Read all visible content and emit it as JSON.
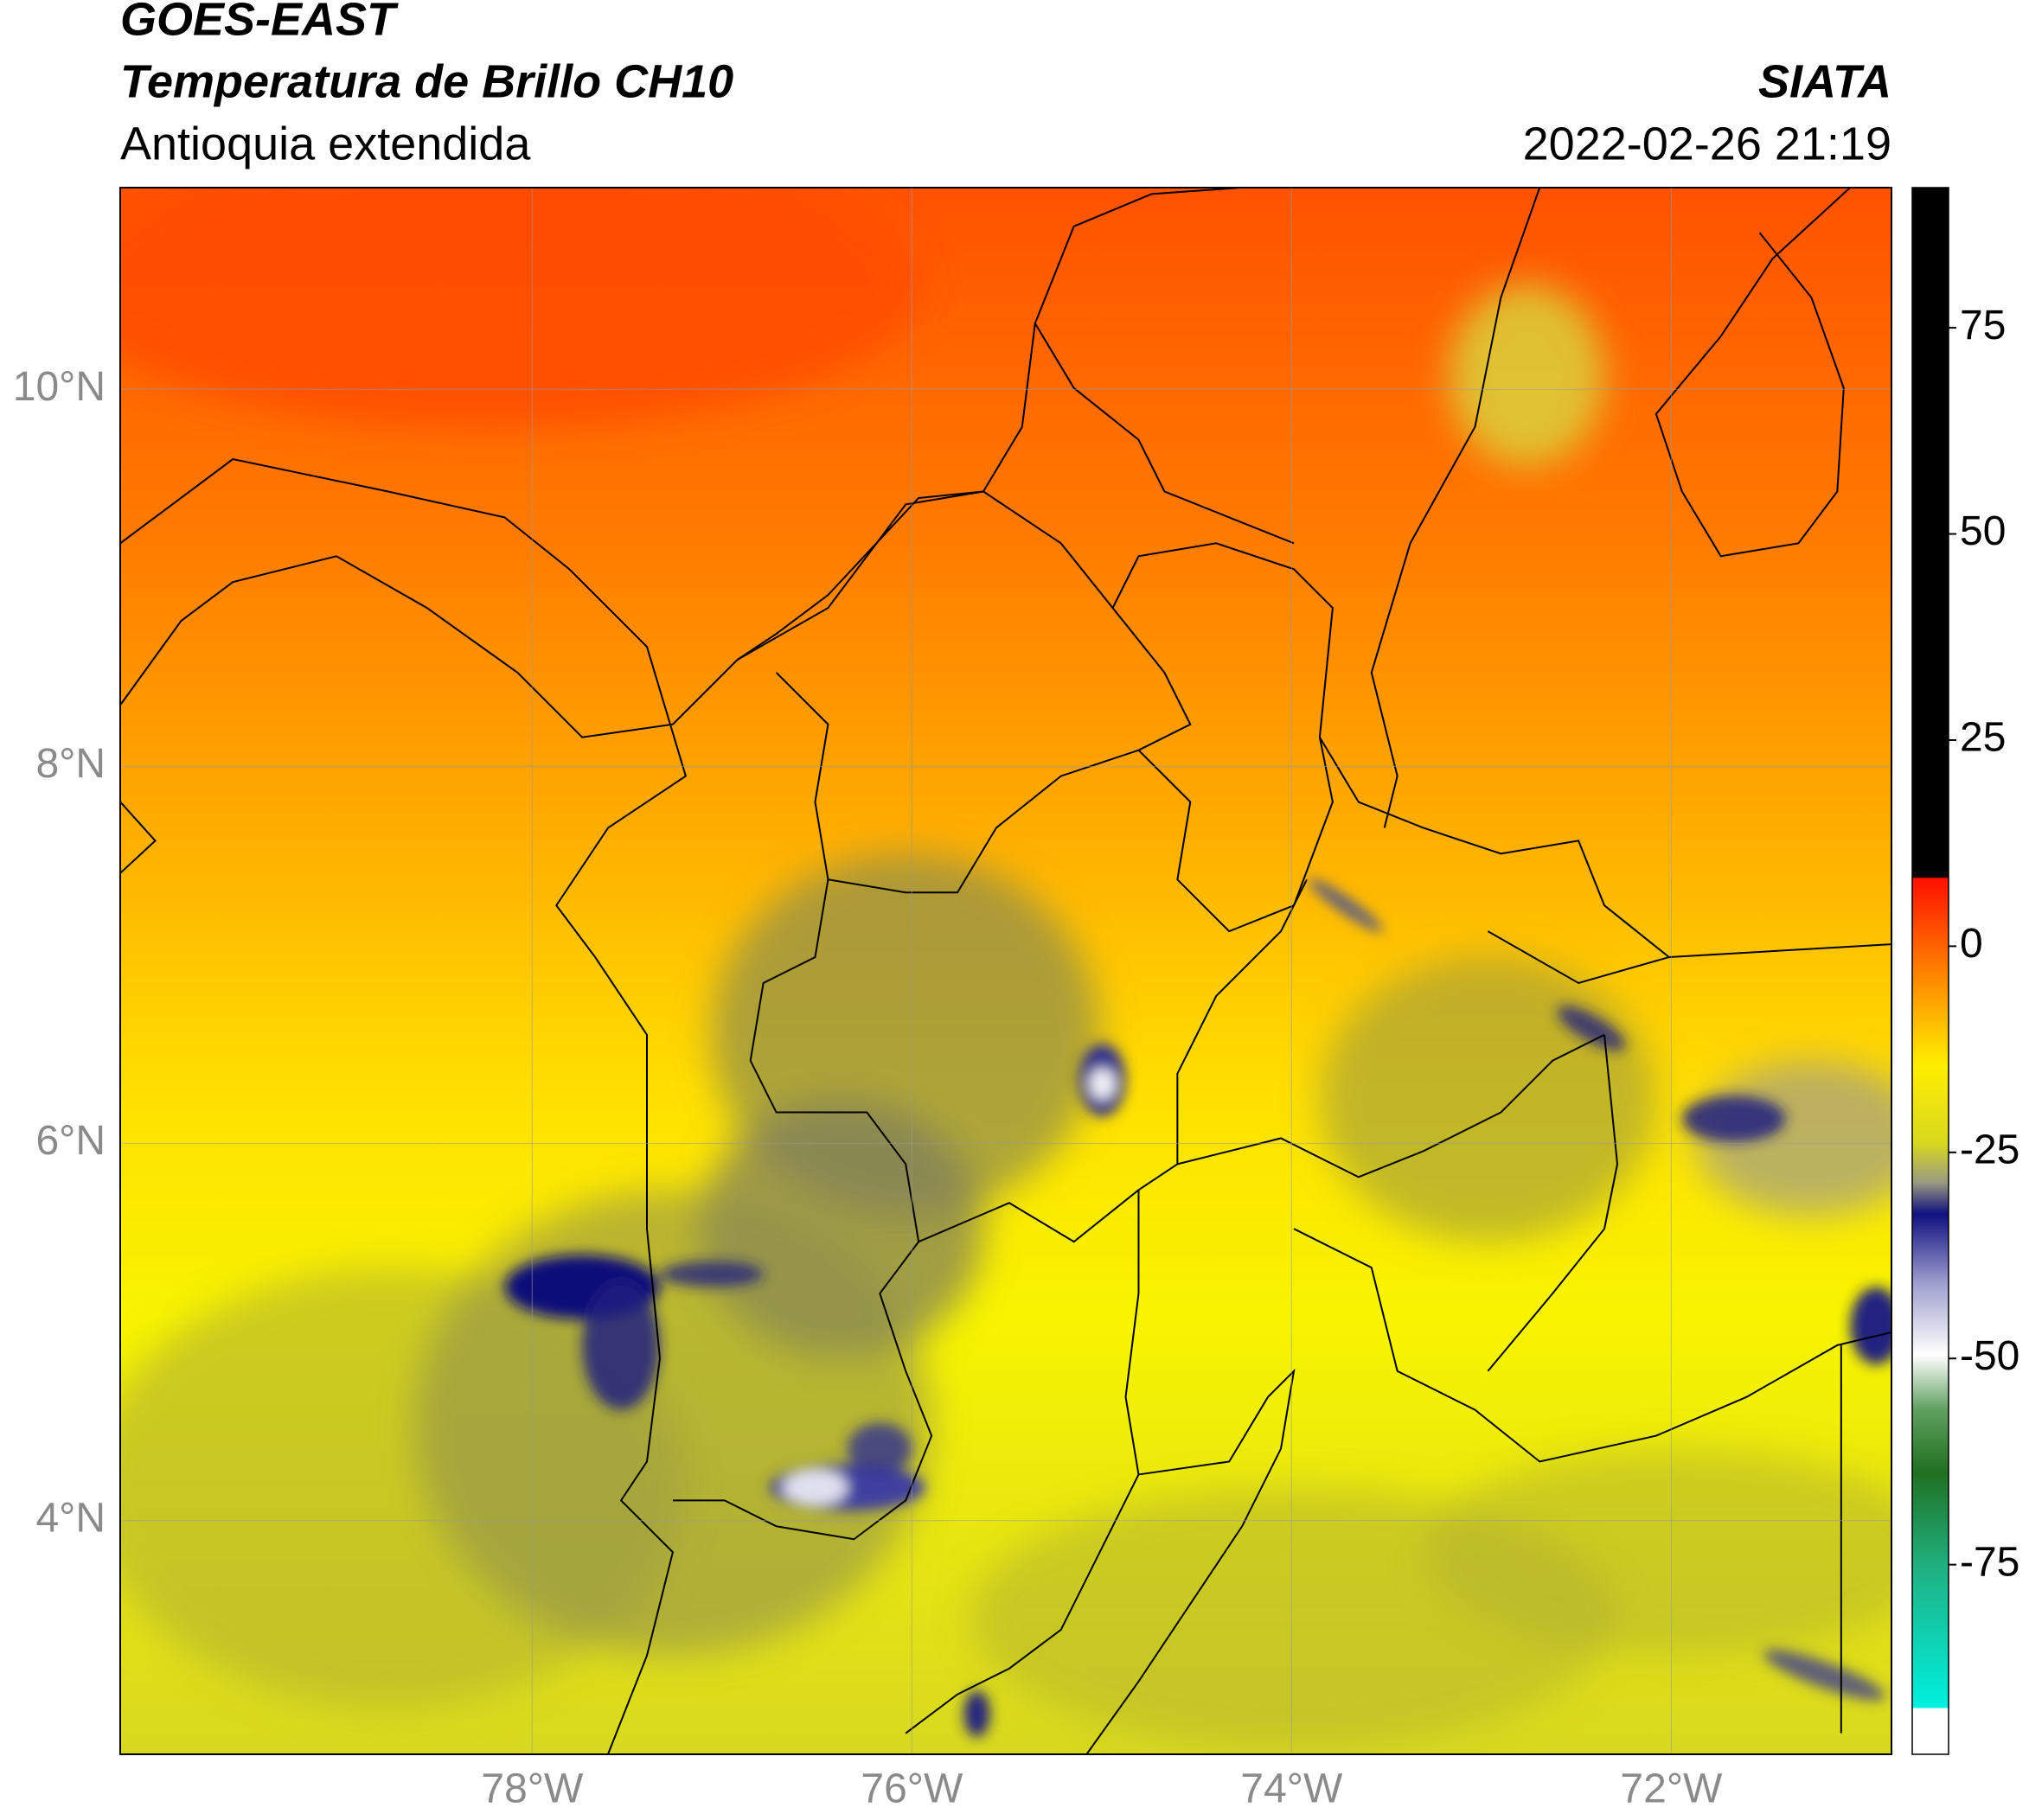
{
  "header": {
    "title": "GOES-EAST",
    "subtitle": "Temperatura de Brillo CH10",
    "region": "Antioquia extendida",
    "source": "SIATA",
    "datetime": "2022-02-26 21:19"
  },
  "map": {
    "xlim": [
      -80.17,
      -70.84
    ],
    "ylim": [
      2.76,
      11.07
    ],
    "xticks": [
      {
        "value": -78,
        "label": "78°W"
      },
      {
        "value": -76,
        "label": "76°W"
      },
      {
        "value": -74,
        "label": "74°W"
      },
      {
        "value": -72,
        "label": "72°W"
      }
    ],
    "yticks": [
      {
        "value": 4,
        "label": "4°N"
      },
      {
        "value": 6,
        "label": "6°N"
      },
      {
        "value": 8,
        "label": "8°N"
      },
      {
        "value": 10,
        "label": "10°N"
      }
    ],
    "grid": true
  },
  "colorbar": {
    "lim": [
      -98,
      92
    ],
    "ticks": [
      75,
      50,
      25,
      0,
      -25,
      -50,
      -75
    ]
  }
}
